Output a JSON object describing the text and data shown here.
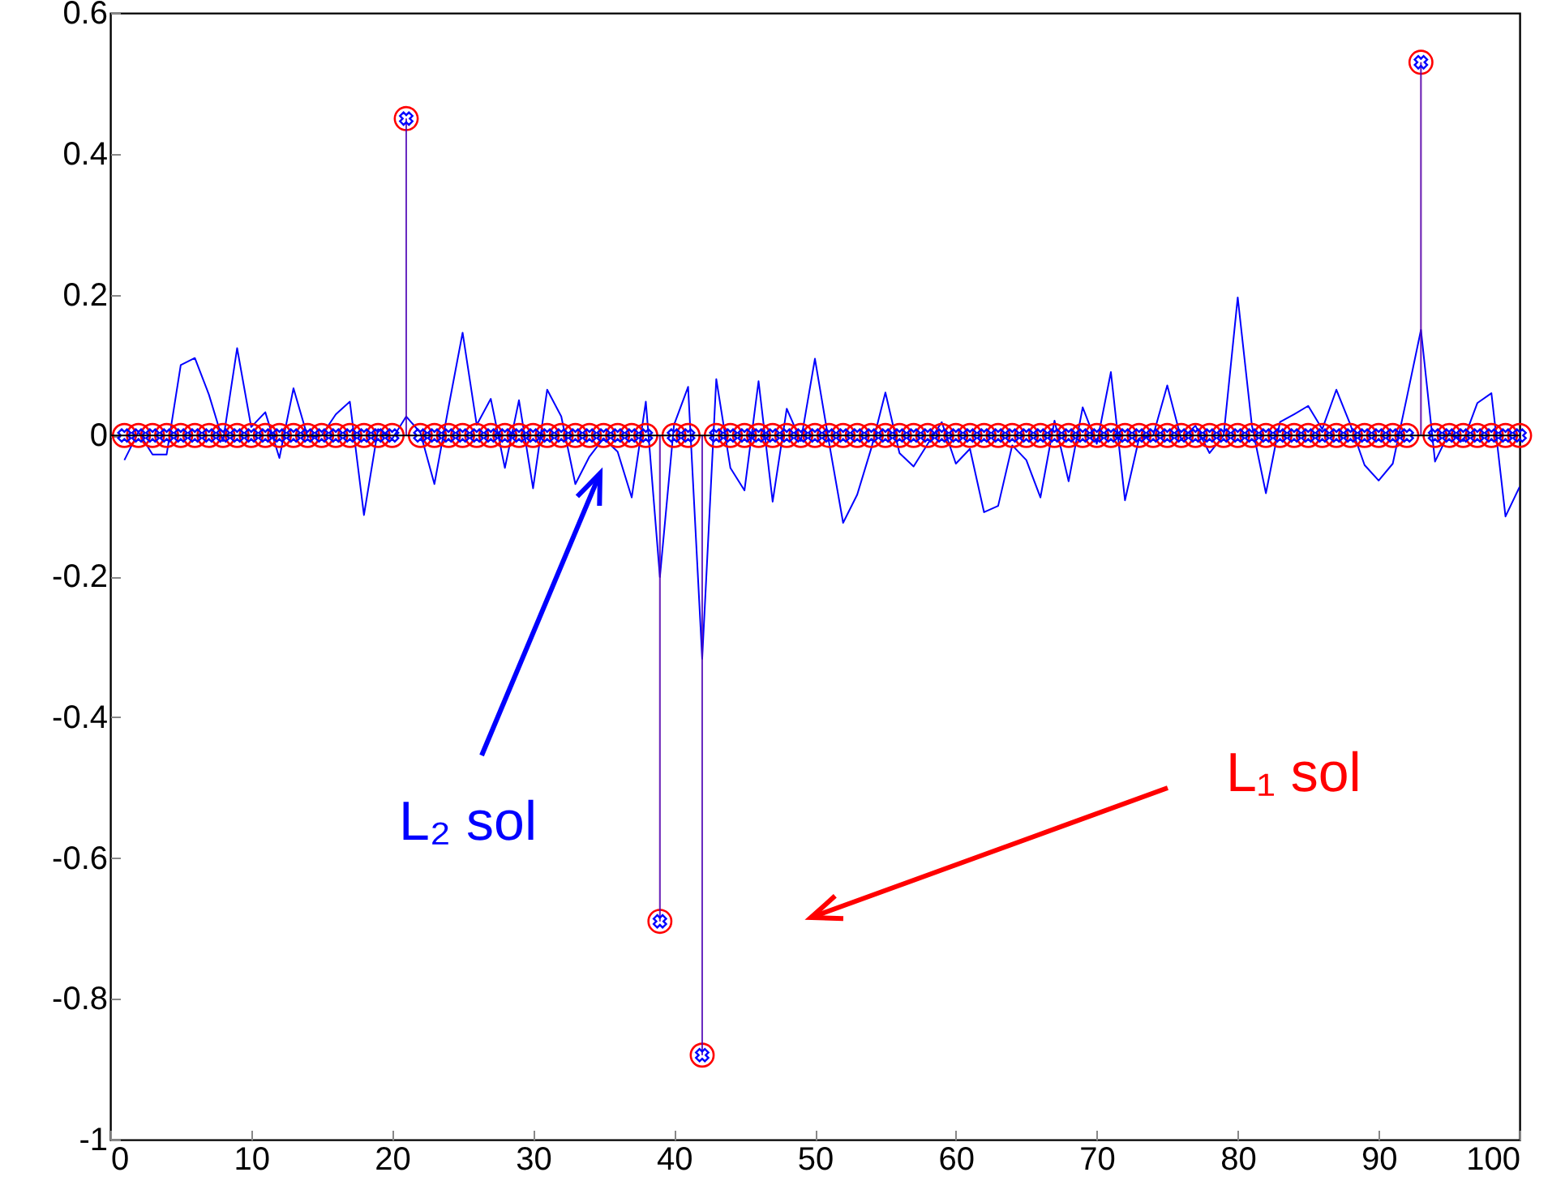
{
  "chart_data": {
    "type": "line",
    "x": [
      1,
      2,
      3,
      4,
      5,
      6,
      7,
      8,
      9,
      10,
      11,
      12,
      13,
      14,
      15,
      16,
      17,
      18,
      19,
      20,
      21,
      22,
      23,
      24,
      25,
      26,
      27,
      28,
      29,
      30,
      31,
      32,
      33,
      34,
      35,
      36,
      37,
      38,
      39,
      40,
      41,
      42,
      43,
      44,
      45,
      46,
      47,
      48,
      49,
      50,
      51,
      52,
      53,
      54,
      55,
      56,
      57,
      58,
      59,
      60,
      61,
      62,
      63,
      64,
      65,
      66,
      67,
      68,
      69,
      70,
      71,
      72,
      73,
      74,
      75,
      76,
      77,
      78,
      79,
      80,
      81,
      82,
      83,
      84,
      85,
      86,
      87,
      88,
      89,
      90,
      91,
      92,
      93,
      94,
      95,
      96,
      97,
      98,
      99,
      100
    ],
    "series": [
      {
        "name": "L₂ sol",
        "color": "#0000ff",
        "marker": "none",
        "values": [
          -0.035,
          0.005,
          -0.027,
          -0.027,
          0.1,
          0.11,
          0.058,
          -0.008,
          0.124,
          0.012,
          0.033,
          -0.032,
          0.067,
          -0.002,
          0,
          0.03,
          0.048,
          -0.113,
          0.009,
          -0.005,
          0.027,
          0.004,
          -0.069,
          0.04,
          0.146,
          0.015,
          0.052,
          -0.046,
          0.05,
          -0.075,
          0.065,
          0.027,
          -0.069,
          -0.03,
          -0.004,
          -0.023,
          -0.088,
          0.048,
          -0.201,
          0.015,
          0.069,
          -0.317,
          0.08,
          -0.046,
          -0.078,
          0.077,
          -0.094,
          0.038,
          -0.008,
          0.109,
          -0.01,
          -0.124,
          -0.084,
          -0.018,
          0.061,
          -0.025,
          -0.044,
          -0.012,
          0.019,
          -0.04,
          -0.019,
          -0.109,
          -0.1,
          -0.014,
          -0.035,
          -0.088,
          0.021,
          -0.065,
          0.04,
          -0.012,
          0.09,
          -0.092,
          -0.004,
          0,
          0.071,
          -0.006,
          0.014,
          -0.025,
          0,
          0.196,
          0.015,
          -0.082,
          0.019,
          0.03,
          0.042,
          0.009,
          0.065,
          0.015,
          -0.042,
          -0.064,
          -0.04,
          0.054,
          0.15,
          -0.037,
          0.004,
          -0.008,
          0.046,
          0.06,
          -0.115,
          -0.073
        ]
      },
      {
        "name": "L₁ sol",
        "type": "lollipop",
        "color": "#ff0000",
        "marker": "circle",
        "values": [
          0,
          0,
          0,
          0,
          0,
          0,
          0,
          0,
          0,
          0,
          0,
          0,
          0,
          0,
          0,
          0,
          0,
          0,
          0,
          0,
          0.45,
          0,
          0,
          0,
          0,
          0,
          0,
          0,
          0,
          0,
          0,
          0,
          0,
          0,
          0,
          0,
          0,
          0,
          -0.69,
          0,
          0,
          -0.88,
          0,
          0,
          0,
          0,
          0,
          0,
          0,
          0,
          0,
          0,
          0,
          0,
          0,
          0,
          0,
          0,
          0,
          0,
          0,
          0,
          0,
          0,
          0,
          0,
          0,
          0,
          0,
          0,
          0,
          0,
          0,
          0,
          0,
          0,
          0,
          0,
          0,
          0,
          0,
          0,
          0,
          0,
          0,
          0,
          0,
          0,
          0,
          0,
          0,
          0,
          0.53,
          0,
          0,
          0,
          0,
          0,
          0,
          0
        ]
      },
      {
        "type": "lollipop",
        "color": "#0000ff",
        "marker": "cross",
        "values": [
          0,
          0,
          0,
          0,
          0,
          0,
          0,
          0,
          0,
          0,
          0,
          0,
          0,
          0,
          0,
          0,
          0,
          0,
          0,
          0,
          0.45,
          0,
          0,
          0,
          0,
          0,
          0,
          0,
          0,
          0,
          0,
          0,
          0,
          0,
          0,
          0,
          0,
          0,
          -0.69,
          0,
          0,
          -0.88,
          0,
          0,
          0,
          0,
          0,
          0,
          0,
          0,
          0,
          0,
          0,
          0,
          0,
          0,
          0,
          0,
          0,
          0,
          0,
          0,
          0,
          0,
          0,
          0,
          0,
          0,
          0,
          0,
          0,
          0,
          0,
          0,
          0,
          0,
          0,
          0,
          0,
          0,
          0,
          0,
          0,
          0,
          0,
          0,
          0,
          0,
          0,
          0,
          0,
          0,
          0.53,
          0,
          0,
          0,
          0,
          0,
          0,
          0
        ]
      }
    ],
    "xlim": [
      0,
      100
    ],
    "xticks": [
      0,
      10,
      20,
      30,
      40,
      50,
      60,
      70,
      80,
      90,
      100
    ],
    "ylim": [
      -1,
      0.6
    ],
    "yticks": [
      -1,
      -0.8,
      -0.6,
      -0.4,
      -0.2,
      0,
      0.2,
      0.4,
      0.6
    ],
    "ref_lines": [
      {
        "axis": "y",
        "value": 0,
        "color": "#000000"
      }
    ],
    "grid": false
  }
}
